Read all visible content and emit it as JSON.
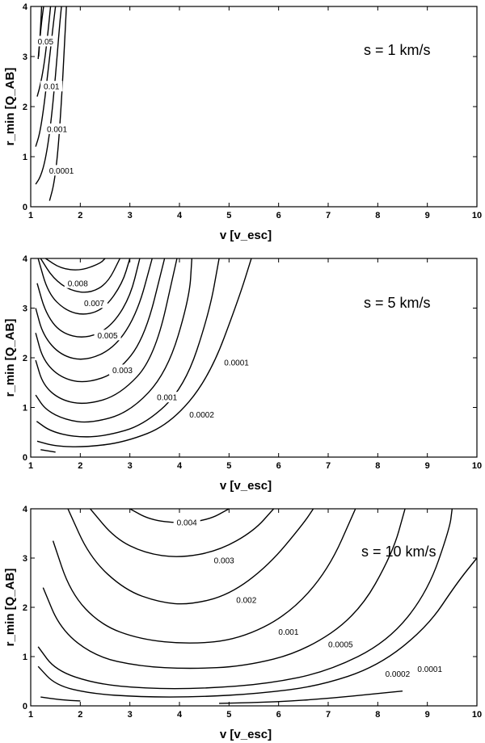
{
  "chart_data": [
    {
      "type": "line",
      "subtype": "contour",
      "xlabel": "v  [v_esc]",
      "ylabel": "r_min  [Q_AB]",
      "xlim": [
        1,
        10
      ],
      "ylim": [
        0,
        4
      ],
      "xticks": [
        "1",
        "2",
        "3",
        "4",
        "5",
        "6",
        "7",
        "8",
        "9",
        "10"
      ],
      "yticks": [
        "0",
        "1",
        "2",
        "3",
        "4"
      ],
      "annotation": "s = 1 km/s",
      "grid": false,
      "series": [
        {
          "label": "0.05",
          "points": [
            [
              1.15,
              2.95
            ],
            [
              1.18,
              3.3
            ],
            [
              1.22,
              3.7
            ],
            [
              1.26,
              4.0
            ]
          ]
        },
        {
          "label": "",
          "points": [
            [
              1.22,
              4.0
            ],
            [
              1.2,
              3.6
            ],
            [
              1.16,
              3.0
            ]
          ]
        },
        {
          "label": "0.01",
          "points": [
            [
              1.13,
              2.2
            ],
            [
              1.2,
              2.45
            ],
            [
              1.28,
              2.9
            ],
            [
              1.35,
              3.5
            ],
            [
              1.4,
              4.0
            ]
          ]
        },
        {
          "label": "0.001",
          "points": [
            [
              1.1,
              1.2
            ],
            [
              1.18,
              1.45
            ],
            [
              1.26,
              1.95
            ],
            [
              1.35,
              2.7
            ],
            [
              1.45,
              3.6
            ],
            [
              1.5,
              4.0
            ]
          ]
        },
        {
          "label": "0.0001",
          "points": [
            [
              1.1,
              0.45
            ],
            [
              1.2,
              0.6
            ],
            [
              1.3,
              0.95
            ],
            [
              1.4,
              1.6
            ],
            [
              1.5,
              2.6
            ],
            [
              1.58,
              3.6
            ],
            [
              1.62,
              4.0
            ]
          ]
        },
        {
          "label": "",
          "points": [
            [
              1.38,
              0.12
            ],
            [
              1.47,
              0.45
            ],
            [
              1.55,
              1.1
            ],
            [
              1.62,
              2.1
            ],
            [
              1.68,
              3.2
            ],
            [
              1.72,
              4.0
            ]
          ]
        }
      ],
      "label_positions": [
        {
          "text": "0.05",
          "x": 1.3,
          "y": 3.3
        },
        {
          "text": "0.01",
          "x": 1.42,
          "y": 2.4
        },
        {
          "text": "0.001",
          "x": 1.53,
          "y": 1.55
        },
        {
          "text": "0.0001",
          "x": 1.62,
          "y": 0.72
        }
      ]
    },
    {
      "type": "line",
      "subtype": "contour",
      "xlabel": "v  [v_esc]",
      "ylabel": "r_min  [Q_AB]",
      "xlim": [
        1,
        10
      ],
      "ylim": [
        0,
        4
      ],
      "xticks": [
        "1",
        "2",
        "3",
        "4",
        "5",
        "6",
        "7",
        "8",
        "9",
        "10"
      ],
      "yticks": [
        "0",
        "1",
        "2",
        "3",
        "4"
      ],
      "annotation": "s = 5 km/s",
      "grid": false,
      "series": [
        {
          "label": "0.008",
          "points": [
            [
              1.3,
              4.0
            ],
            [
              1.6,
              3.8
            ],
            [
              2.0,
              3.75
            ],
            [
              2.4,
              3.9
            ],
            [
              2.5,
              4.0
            ]
          ]
        },
        {
          "label": "0.007",
          "points": [
            [
              1.2,
              4.0
            ],
            [
              1.45,
              3.6
            ],
            [
              1.8,
              3.35
            ],
            [
              2.2,
              3.3
            ],
            [
              2.55,
              3.5
            ],
            [
              2.8,
              4.0
            ]
          ]
        },
        {
          "label": "",
          "points": [
            [
              1.15,
              4.0
            ],
            [
              1.35,
              3.3
            ],
            [
              1.7,
              2.95
            ],
            [
              2.1,
              2.85
            ],
            [
              2.5,
              3.0
            ],
            [
              2.85,
              3.5
            ],
            [
              3.0,
              4.0
            ]
          ]
        },
        {
          "label": "0.005",
          "points": [
            [
              1.13,
              3.5
            ],
            [
              1.3,
              2.9
            ],
            [
              1.6,
              2.5
            ],
            [
              2.1,
              2.38
            ],
            [
              2.6,
              2.6
            ],
            [
              3.0,
              3.2
            ],
            [
              3.2,
              4.0
            ]
          ]
        },
        {
          "label": "",
          "points": [
            [
              1.1,
              3.0
            ],
            [
              1.25,
              2.45
            ],
            [
              1.6,
              2.05
            ],
            [
              2.1,
              1.93
            ],
            [
              2.7,
              2.2
            ],
            [
              3.15,
              2.9
            ],
            [
              3.45,
              4.0
            ]
          ]
        },
        {
          "label": "0.003",
          "points": [
            [
              1.1,
              2.5
            ],
            [
              1.25,
              1.95
            ],
            [
              1.6,
              1.6
            ],
            [
              2.1,
              1.48
            ],
            [
              2.75,
              1.7
            ],
            [
              3.3,
              2.4
            ],
            [
              3.7,
              4.0
            ]
          ]
        },
        {
          "label": "",
          "points": [
            [
              1.1,
              1.95
            ],
            [
              1.25,
              1.45
            ],
            [
              1.6,
              1.15
            ],
            [
              2.1,
              1.05
            ],
            [
              2.8,
              1.25
            ],
            [
              3.5,
              2.0
            ],
            [
              3.95,
              4.0
            ]
          ]
        },
        {
          "label": "0.001",
          "points": [
            [
              1.1,
              1.25
            ],
            [
              1.3,
              0.95
            ],
            [
              1.7,
              0.75
            ],
            [
              2.2,
              0.68
            ],
            [
              3.0,
              0.9
            ],
            [
              3.75,
              1.7
            ],
            [
              4.2,
              3.2
            ],
            [
              4.25,
              4.0
            ]
          ]
        },
        {
          "label": "0.0002",
          "points": [
            [
              1.12,
              0.72
            ],
            [
              1.4,
              0.52
            ],
            [
              1.9,
              0.4
            ],
            [
              2.5,
              0.42
            ],
            [
              3.3,
              0.65
            ],
            [
              4.1,
              1.4
            ],
            [
              4.6,
              2.9
            ],
            [
              4.8,
              4.0
            ]
          ]
        },
        {
          "label": "0.0001",
          "points": [
            [
              1.13,
              0.32
            ],
            [
              1.5,
              0.22
            ],
            [
              2.1,
              0.2
            ],
            [
              2.9,
              0.3
            ],
            [
              3.8,
              0.65
            ],
            [
              4.6,
              1.6
            ],
            [
              5.2,
              3.2
            ],
            [
              5.45,
              4.0
            ]
          ]
        },
        {
          "label": "",
          "points": [
            [
              1.2,
              0.15
            ],
            [
              1.5,
              0.1
            ]
          ]
        }
      ],
      "label_positions": [
        {
          "text": "0.008",
          "x": 1.95,
          "y": 3.5
        },
        {
          "text": "0.007",
          "x": 2.28,
          "y": 3.1
        },
        {
          "text": "0.005",
          "x": 2.55,
          "y": 2.45
        },
        {
          "text": "0.003",
          "x": 2.85,
          "y": 1.75
        },
        {
          "text": "0.001",
          "x": 3.75,
          "y": 1.2
        },
        {
          "text": "0.0002",
          "x": 4.45,
          "y": 0.85
        },
        {
          "text": "0.0001",
          "x": 5.15,
          "y": 1.9
        }
      ]
    },
    {
      "type": "line",
      "subtype": "contour",
      "xlabel": "v  [v_esc]",
      "ylabel": "r_min  [Q_AB]",
      "xlim": [
        1,
        10
      ],
      "ylim": [
        0,
        4
      ],
      "xticks": [
        "1",
        "2",
        "3",
        "4",
        "5",
        "6",
        "7",
        "8",
        "9",
        "10"
      ],
      "yticks": [
        "0",
        "1",
        "2",
        "3",
        "4"
      ],
      "annotation": "s = 10 km/s",
      "grid": false,
      "series": [
        {
          "label": "0.004",
          "points": [
            [
              3.0,
              4.0
            ],
            [
              3.4,
              3.78
            ],
            [
              4.0,
              3.7
            ],
            [
              4.6,
              3.78
            ],
            [
              5.0,
              4.0
            ]
          ]
        },
        {
          "label": "0.003",
          "points": [
            [
              2.2,
              4.0
            ],
            [
              2.7,
              3.4
            ],
            [
              3.3,
              3.1
            ],
            [
              4.0,
              3.0
            ],
            [
              4.8,
              3.15
            ],
            [
              5.5,
              3.55
            ],
            [
              5.9,
              4.0
            ]
          ]
        },
        {
          "label": "0.002",
          "points": [
            [
              1.75,
              4.0
            ],
            [
              2.2,
              3.0
            ],
            [
              2.9,
              2.35
            ],
            [
              3.6,
              2.1
            ],
            [
              4.2,
              2.05
            ],
            [
              5.0,
              2.25
            ],
            [
              5.8,
              2.85
            ],
            [
              6.5,
              3.7
            ],
            [
              6.7,
              4.0
            ]
          ]
        },
        {
          "label": "0.001",
          "points": [
            [
              1.45,
              3.35
            ],
            [
              1.8,
              2.3
            ],
            [
              2.4,
              1.65
            ],
            [
              3.2,
              1.35
            ],
            [
              4.2,
              1.25
            ],
            [
              5.2,
              1.35
            ],
            [
              6.2,
              1.85
            ],
            [
              7.0,
              2.75
            ],
            [
              7.55,
              4.0
            ]
          ]
        },
        {
          "label": "0.0005",
          "points": [
            [
              1.25,
              2.4
            ],
            [
              1.6,
              1.55
            ],
            [
              2.3,
              1.0
            ],
            [
              3.2,
              0.8
            ],
            [
              4.2,
              0.75
            ],
            [
              5.3,
              0.8
            ],
            [
              6.5,
              1.1
            ],
            [
              7.6,
              1.85
            ],
            [
              8.3,
              3.1
            ],
            [
              8.55,
              4.0
            ]
          ]
        },
        {
          "label": "0.0002",
          "points": [
            [
              1.15,
              1.2
            ],
            [
              1.5,
              0.72
            ],
            [
              2.3,
              0.45
            ],
            [
              3.3,
              0.35
            ],
            [
              4.5,
              0.35
            ],
            [
              5.8,
              0.45
            ],
            [
              7.0,
              0.7
            ],
            [
              8.2,
              1.3
            ],
            [
              9.0,
              2.3
            ],
            [
              9.45,
              3.6
            ],
            [
              9.5,
              4.0
            ]
          ]
        },
        {
          "label": "0.0001",
          "points": [
            [
              1.15,
              0.8
            ],
            [
              1.5,
              0.42
            ],
            [
              2.2,
              0.25
            ],
            [
              3.2,
              0.18
            ],
            [
              4.4,
              0.18
            ],
            [
              5.6,
              0.25
            ],
            [
              6.8,
              0.4
            ],
            [
              8.0,
              0.8
            ],
            [
              9.0,
              1.6
            ],
            [
              9.6,
              2.5
            ],
            [
              10.0,
              3.0
            ]
          ]
        },
        {
          "label": "",
          "points": [
            [
              1.2,
              0.18
            ],
            [
              1.6,
              0.12
            ],
            [
              2.0,
              0.1
            ]
          ]
        },
        {
          "label": "",
          "points": [
            [
              4.8,
              0.05
            ],
            [
              6.0,
              0.08
            ],
            [
              7.0,
              0.15
            ],
            [
              8.0,
              0.25
            ],
            [
              8.5,
              0.3
            ]
          ]
        }
      ],
      "label_positions": [
        {
          "text": "0.004",
          "x": 4.15,
          "y": 3.72
        },
        {
          "text": "0.003",
          "x": 4.9,
          "y": 2.95
        },
        {
          "text": "0.002",
          "x": 5.35,
          "y": 2.15
        },
        {
          "text": "0.001",
          "x": 6.2,
          "y": 1.5
        },
        {
          "text": "0.0005",
          "x": 7.25,
          "y": 1.25
        },
        {
          "text": "0.0002",
          "x": 8.4,
          "y": 0.65
        },
        {
          "text": "0.0001",
          "x": 9.05,
          "y": 0.75
        }
      ]
    }
  ]
}
